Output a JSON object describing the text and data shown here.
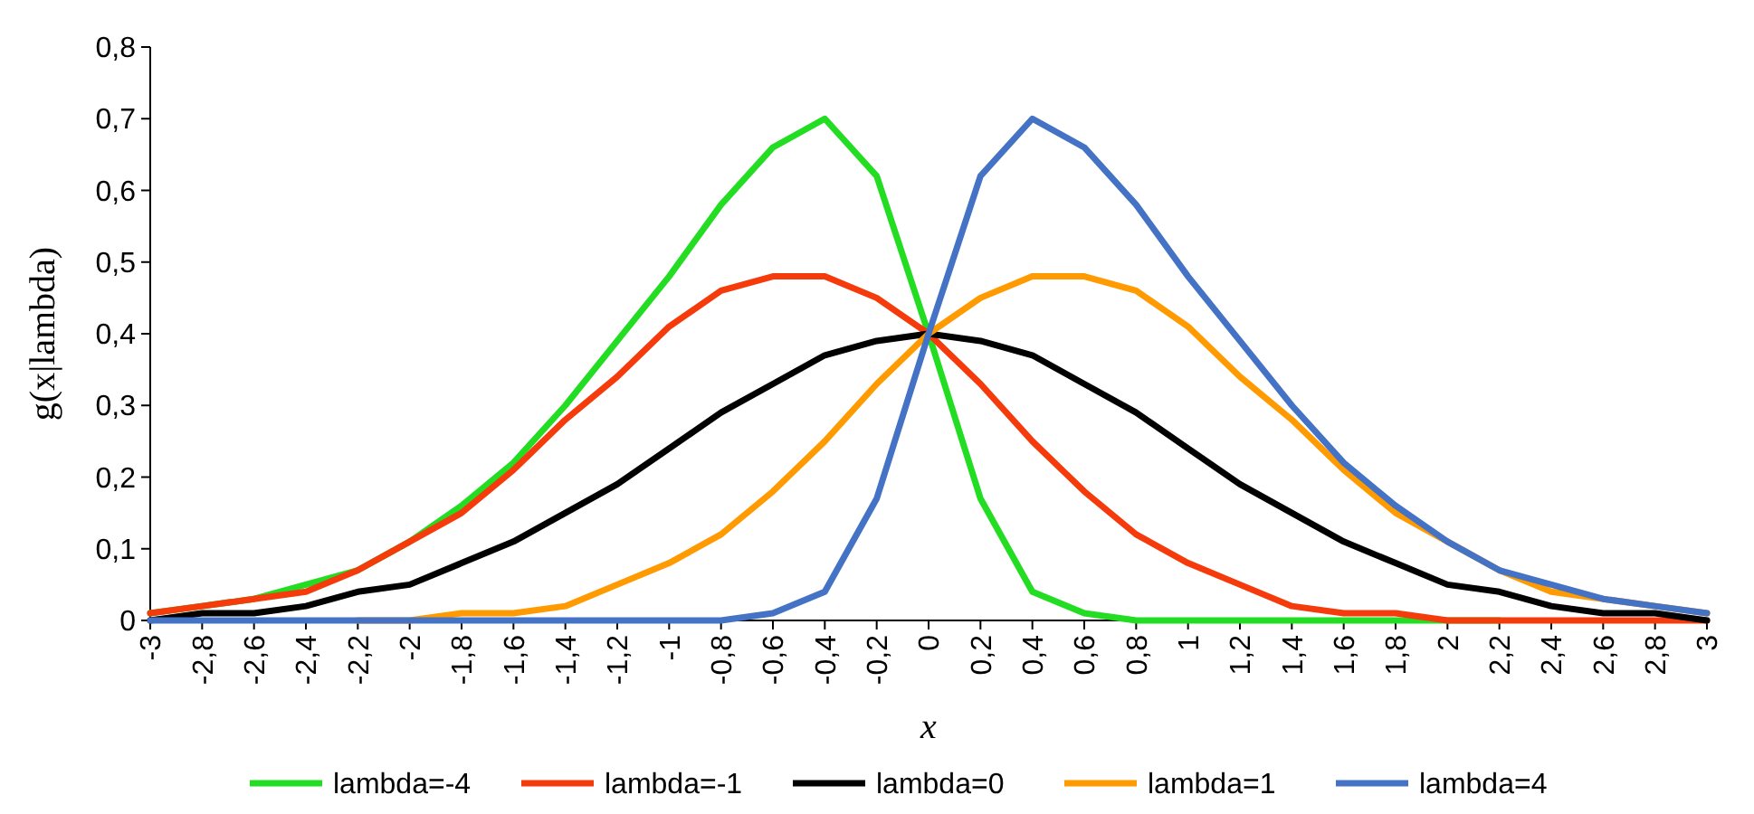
{
  "chart_data": {
    "type": "line",
    "xlabel": "x",
    "ylabel": "g(x|lambda)",
    "x": [
      -3,
      -2.8,
      -2.6,
      -2.4,
      -2.2,
      -2,
      -1.8,
      -1.6,
      -1.4,
      -1.2,
      -1,
      -0.8,
      -0.6,
      -0.4,
      -0.2,
      0,
      0.2,
      0.4,
      0.6,
      0.8,
      1,
      1.2,
      1.4,
      1.6,
      1.8,
      2,
      2.2,
      2.4,
      2.6,
      2.8,
      3
    ],
    "xlim": [
      -3,
      3
    ],
    "xticks": [
      {
        "value": -3,
        "label": "-3"
      },
      {
        "value": -2.8,
        "label": "-2,8"
      },
      {
        "value": -2.6,
        "label": "-2,6"
      },
      {
        "value": -2.4,
        "label": "-2,4"
      },
      {
        "value": -2.2,
        "label": "-2,2"
      },
      {
        "value": -2,
        "label": "-2"
      },
      {
        "value": -1.8,
        "label": "-1,8"
      },
      {
        "value": -1.6,
        "label": "-1,6"
      },
      {
        "value": -1.4,
        "label": "-1,4"
      },
      {
        "value": -1.2,
        "label": "-1,2"
      },
      {
        "value": -1,
        "label": "-1"
      },
      {
        "value": -0.8,
        "label": "-0,8"
      },
      {
        "value": -0.6,
        "label": "-0,6"
      },
      {
        "value": -0.4,
        "label": "-0,4"
      },
      {
        "value": -0.2,
        "label": "-0,2"
      },
      0,
      {
        "value": 0.2,
        "label": "0,2"
      },
      {
        "value": 0.4,
        "label": "0,4"
      },
      {
        "value": 0.6,
        "label": "0,6"
      },
      {
        "value": 0.8,
        "label": "0,8"
      },
      1,
      {
        "value": 1.2,
        "label": "1,2"
      },
      {
        "value": 1.4,
        "label": "1,4"
      },
      {
        "value": 1.6,
        "label": "1,6"
      },
      {
        "value": 1.8,
        "label": "1,8"
      },
      2,
      {
        "value": 2.2,
        "label": "2,2"
      },
      {
        "value": 2.4,
        "label": "2,4"
      },
      {
        "value": 2.6,
        "label": "2,6"
      },
      {
        "value": 2.8,
        "label": "2,8"
      },
      3
    ],
    "ylim": [
      0,
      0.8
    ],
    "yticks": [
      0,
      {
        "value": 0.1,
        "label": "0,1"
      },
      {
        "value": 0.2,
        "label": "0,2"
      },
      {
        "value": 0.3,
        "label": "0,3"
      },
      {
        "value": 0.4,
        "label": "0,4"
      },
      {
        "value": 0.5,
        "label": "0,5"
      },
      {
        "value": 0.6,
        "label": "0,6"
      },
      {
        "value": 0.7,
        "label": "0,7"
      },
      {
        "value": 0.8,
        "label": "0,8"
      }
    ],
    "grid": false,
    "legend": "bottom",
    "marker": "none",
    "line_style": "solid",
    "series": [
      {
        "name": "lambda=-4",
        "color": "#22dd22",
        "values": [
          0.01,
          0.02,
          0.03,
          0.05,
          0.07,
          0.11,
          0.16,
          0.22,
          0.3,
          0.39,
          0.48,
          0.58,
          0.66,
          0.7,
          0.62,
          0.4,
          0.17,
          0.04,
          0.01,
          0,
          0,
          0,
          0,
          0,
          0,
          0,
          0,
          null,
          null,
          null,
          null
        ]
      },
      {
        "name": "lambda=-1",
        "color": "#f53b0c",
        "values": [
          0.01,
          0.02,
          0.03,
          0.04,
          0.07,
          0.11,
          0.15,
          0.21,
          0.28,
          0.34,
          0.41,
          0.46,
          0.48,
          0.48,
          0.45,
          0.4,
          0.33,
          0.25,
          0.18,
          0.12,
          0.08,
          0.05,
          0.02,
          0.01,
          0.01,
          0,
          0,
          0,
          0,
          0,
          0
        ]
      },
      {
        "name": "lambda=0",
        "color": "#000000",
        "values": [
          0,
          0.01,
          0.01,
          0.02,
          0.04,
          0.05,
          0.08,
          0.11,
          0.15,
          0.19,
          0.24,
          0.29,
          0.33,
          0.37,
          0.39,
          0.4,
          0.39,
          0.37,
          0.33,
          0.29,
          0.24,
          0.19,
          0.15,
          0.11,
          0.08,
          0.05,
          0.04,
          0.02,
          0.01,
          0.01,
          0
        ]
      },
      {
        "name": "lambda=1",
        "color": "#ff9a00",
        "values": [
          null,
          null,
          null,
          null,
          0,
          0,
          0.01,
          0.01,
          0.02,
          0.05,
          0.08,
          0.12,
          0.18,
          0.25,
          0.33,
          0.4,
          0.45,
          0.48,
          0.48,
          0.46,
          0.41,
          0.34,
          0.28,
          0.21,
          0.15,
          0.11,
          0.07,
          0.04,
          0.03,
          0.02,
          0.01
        ]
      },
      {
        "name": "lambda=4",
        "color": "#4472c4",
        "values": [
          0,
          0,
          0,
          0,
          0,
          0,
          0,
          0,
          0,
          0,
          0,
          0,
          0.01,
          0.04,
          0.17,
          0.4,
          0.62,
          0.7,
          0.66,
          0.58,
          0.48,
          0.39,
          0.3,
          0.22,
          0.16,
          0.11,
          0.07,
          0.05,
          0.03,
          0.02,
          0.01
        ]
      }
    ]
  }
}
